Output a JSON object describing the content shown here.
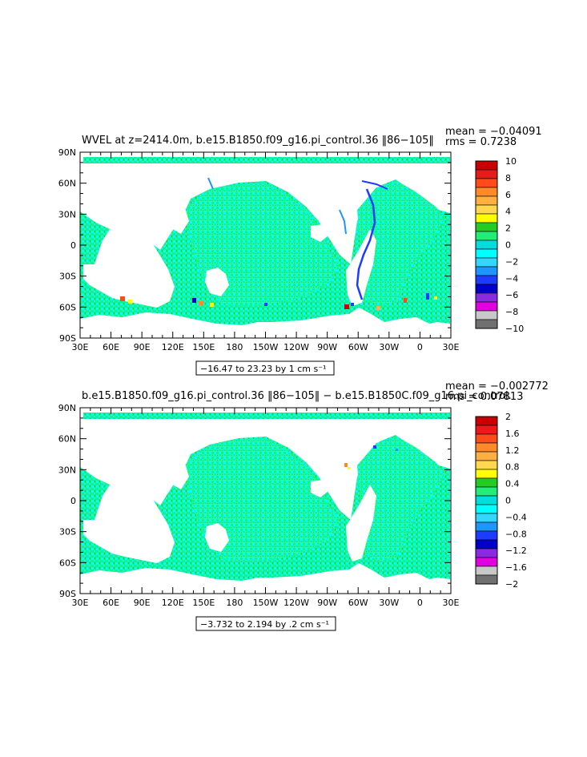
{
  "chart_data": [
    {
      "type": "heatmap",
      "title": "WVEL at z=2414.0m, b.e15.B1850.f09_g16.pi_control.36 ‖86−105‖",
      "stats": {
        "mean": "mean = −0.04091",
        "rms": "rms = 0.7238"
      },
      "range_label": "−16.47 to 23.23 by 1 cm s⁻¹",
      "x_ticks": [
        "30E",
        "60E",
        "90E",
        "120E",
        "150E",
        "180",
        "150W",
        "120W",
        "90W",
        "60W",
        "30W",
        "0",
        "30E"
      ],
      "y_ticks": [
        "90N",
        "60N",
        "30N",
        "0",
        "30S",
        "60S",
        "90S"
      ],
      "colorbar": {
        "levels": [
          "10",
          "8",
          "6",
          "4",
          "2",
          "0",
          "−2",
          "−4",
          "−6",
          "−8",
          "−10"
        ],
        "colors": [
          "#c80000",
          "#e81a1a",
          "#ff4a1a",
          "#ff8a2a",
          "#ffb040",
          "#ffd850",
          "#ffff00",
          "#22cc22",
          "#22ee77",
          "#00dddd",
          "#00ffff",
          "#33d6ff",
          "#1e96ff",
          "#1e3cff",
          "#0000c8",
          "#8a2be2",
          "#e000e0",
          "#c8c8c8",
          "#707070"
        ]
      }
    },
    {
      "type": "heatmap",
      "title": "b.e15.B1850.f09_g16.pi_control.36 ‖86−105‖ − b.e15.B1850C.f09_g16.pi_control.",
      "stats": {
        "mean": "mean = −0.002772",
        "rms": "rms = 0.07813"
      },
      "range_label": "−3.732 to 2.194 by .2 cm s⁻¹",
      "x_ticks": [
        "30E",
        "60E",
        "90E",
        "120E",
        "150E",
        "180",
        "150W",
        "120W",
        "90W",
        "60W",
        "30W",
        "0",
        "30E"
      ],
      "y_ticks": [
        "90N",
        "60N",
        "30N",
        "0",
        "30S",
        "60S",
        "90S"
      ],
      "colorbar": {
        "levels": [
          "2",
          "1.6",
          "1.2",
          "0.8",
          "0.4",
          "0",
          "−0.4",
          "−0.8",
          "−1.2",
          "−1.6",
          "−2"
        ],
        "colors": [
          "#c80000",
          "#e81a1a",
          "#ff4a1a",
          "#ff8a2a",
          "#ffb040",
          "#ffd850",
          "#ffff00",
          "#22cc22",
          "#22ee77",
          "#00dddd",
          "#00ffff",
          "#33d6ff",
          "#1e96ff",
          "#1e3cff",
          "#0000c8",
          "#8a2be2",
          "#e000e0",
          "#c8c8c8",
          "#707070"
        ]
      }
    }
  ]
}
